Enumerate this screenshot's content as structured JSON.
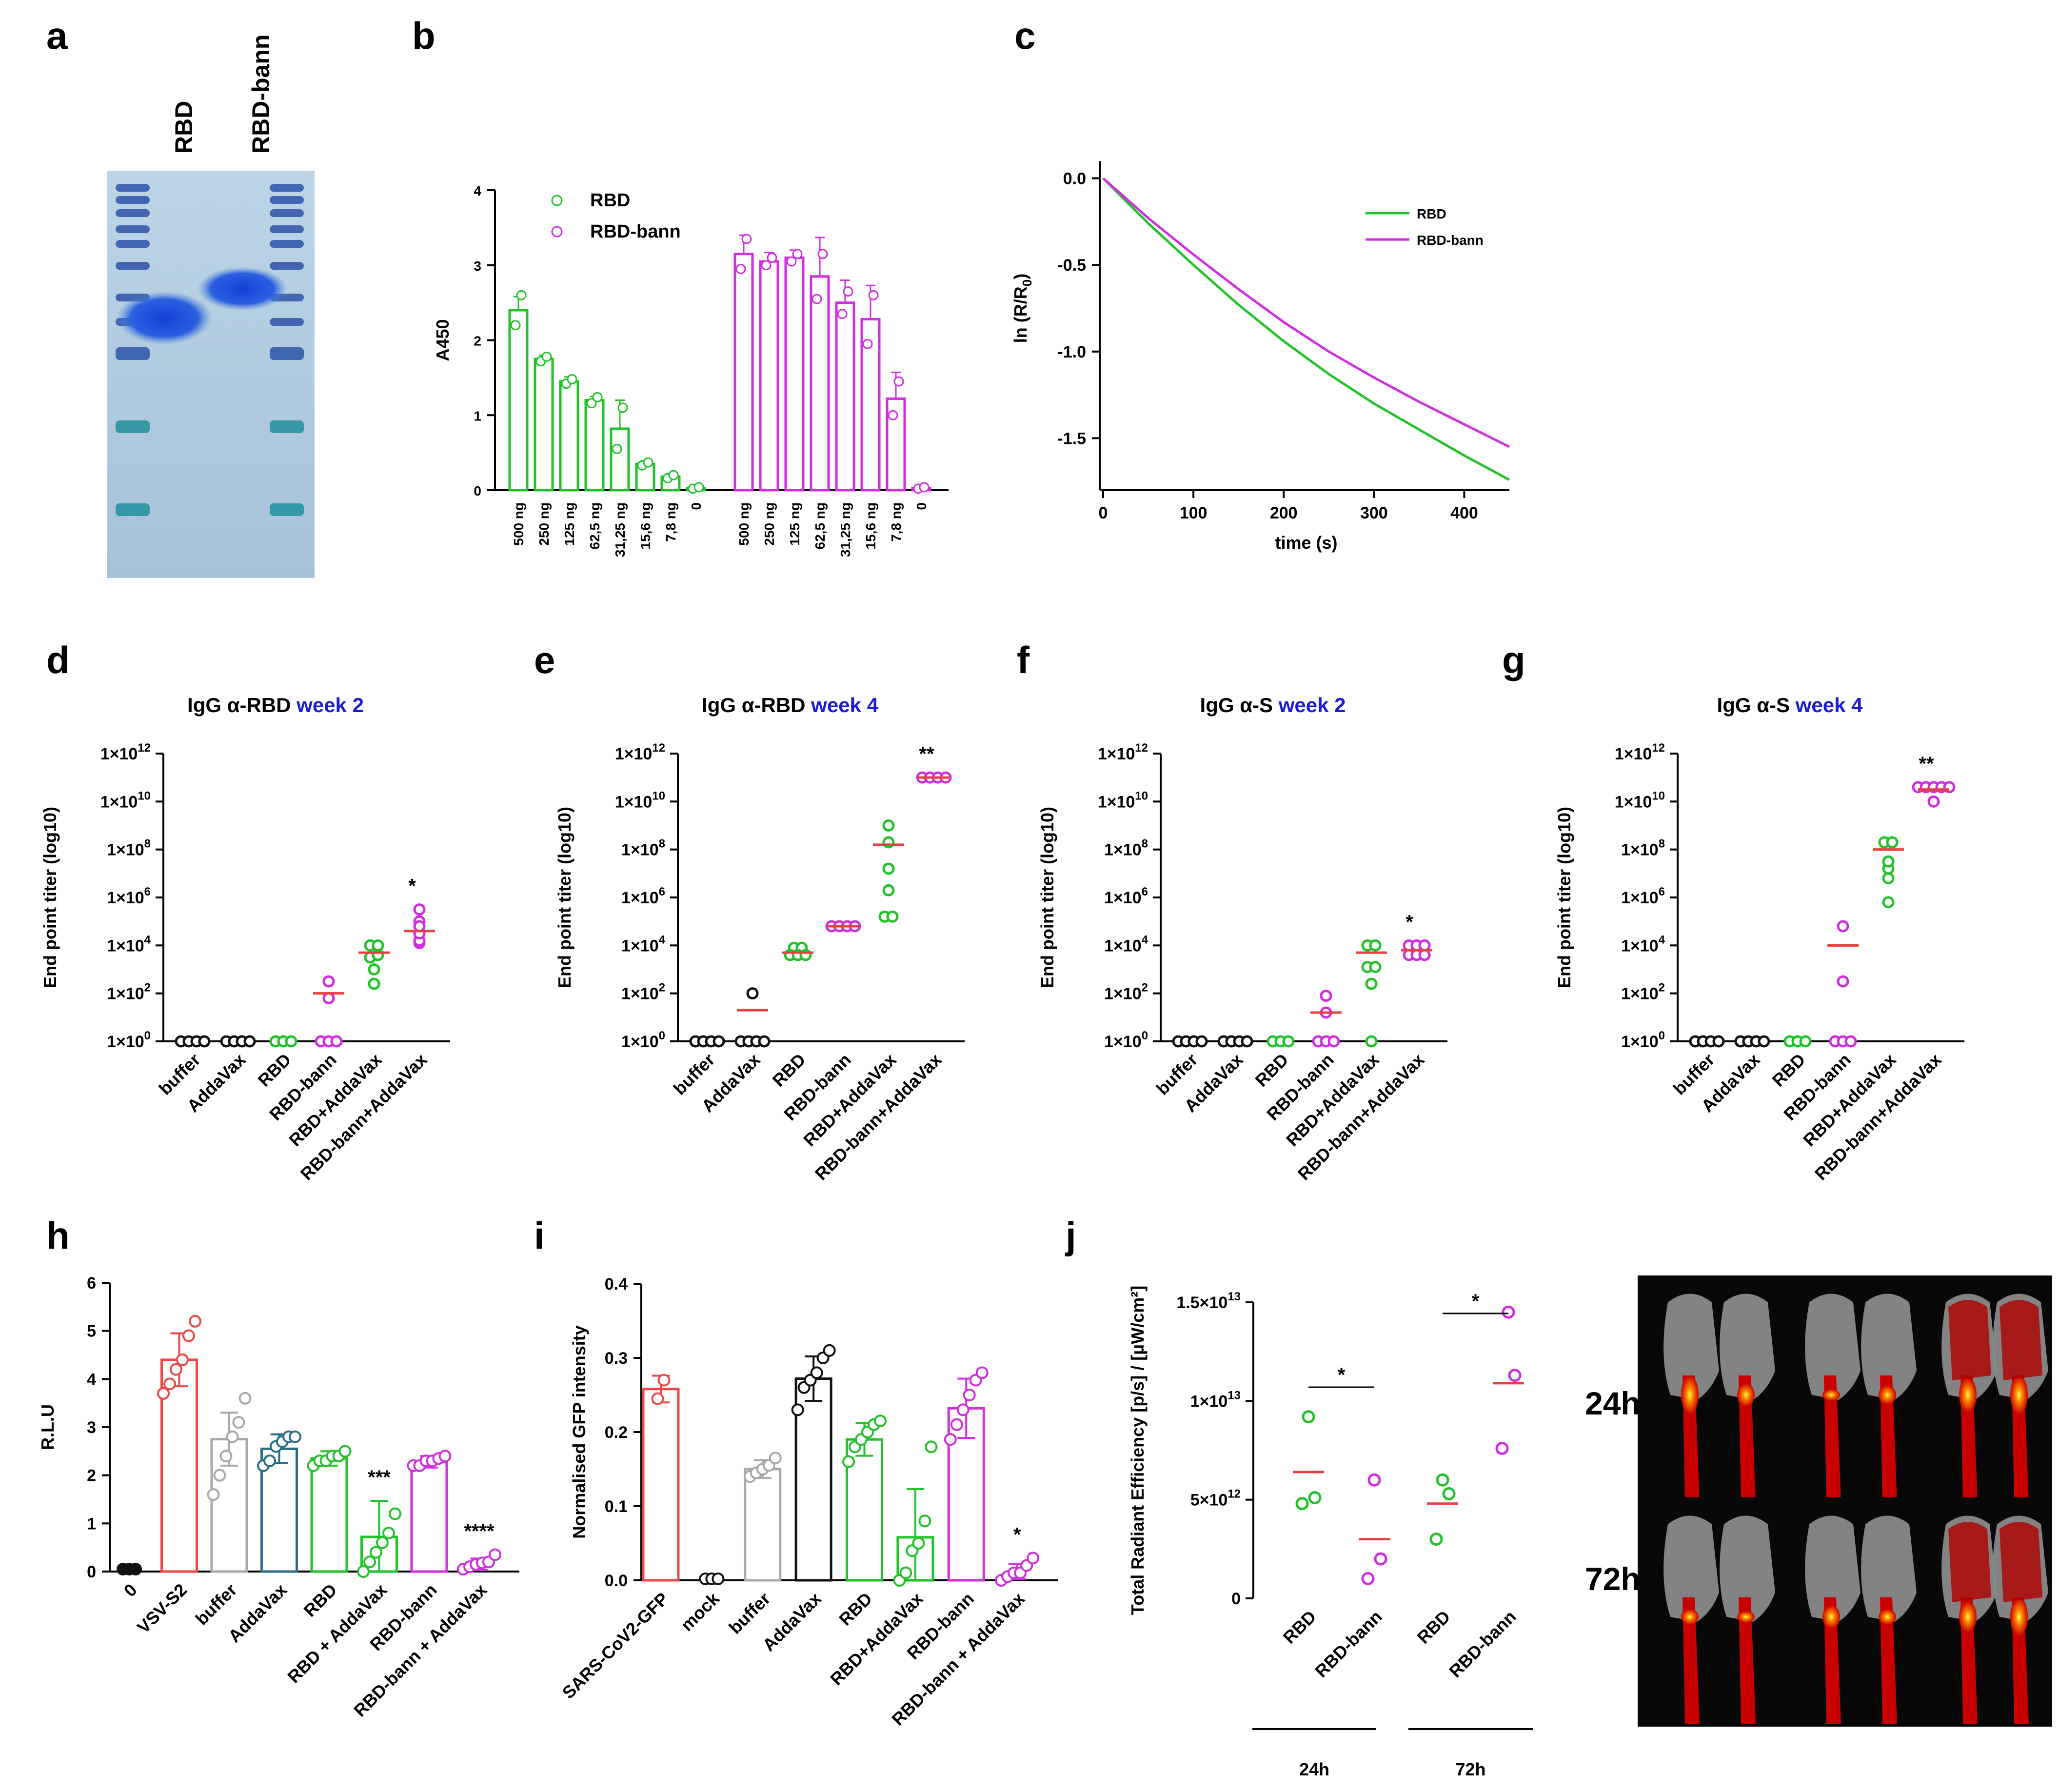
{
  "panel_letters": {
    "a": "a",
    "b": "b",
    "c": "c",
    "d": "d",
    "e": "e",
    "f": "f",
    "g": "g",
    "h": "h",
    "i": "i",
    "j": "j"
  },
  "colors": {
    "green": "#22c22a",
    "magenta": "#d02ee0",
    "red": "#ee4848",
    "grey": "#a8a8a8",
    "teal": "#2a6f86",
    "black": "#111111",
    "mean": "#e84040",
    "titleBlue": "#1a1ad8"
  },
  "chart_data": [
    {
      "id": "a",
      "type": "gel",
      "lane_labels": [
        "RBD",
        "RBD-bann"
      ]
    },
    {
      "id": "b",
      "type": "bar",
      "ylabel": "A450",
      "ylim": [
        0,
        4
      ],
      "yticks": [
        "0",
        "1",
        "2",
        "3",
        "4"
      ],
      "categories": [
        "500 ng",
        "250 ng",
        "125 ng",
        "62,5 ng",
        "31,25 ng",
        "15,6 ng",
        "7,8 ng",
        "0"
      ],
      "series": [
        {
          "name": "RBD",
          "color": "#22c22a",
          "values": [
            2.4,
            1.75,
            1.45,
            1.2,
            0.82,
            0.35,
            0.18,
            0.03
          ],
          "err": [
            0.18,
            0.05,
            0.06,
            0.05,
            0.38,
            0.04,
            0.04,
            0.02
          ],
          "points": [
            [
              2.2,
              2.6
            ],
            [
              1.72,
              1.78
            ],
            [
              1.42,
              1.48
            ],
            [
              1.16,
              1.24
            ],
            [
              0.55,
              1.1
            ],
            [
              0.33,
              0.37
            ],
            [
              0.16,
              0.2
            ],
            [
              0.02,
              0.04
            ]
          ]
        },
        {
          "name": "RBD-bann",
          "color": "#d02ee0",
          "values": [
            3.15,
            3.05,
            3.1,
            2.85,
            2.5,
            2.28,
            1.22,
            0.03
          ],
          "err": [
            0.25,
            0.12,
            0.1,
            0.52,
            0.3,
            0.45,
            0.35,
            0.02
          ],
          "points": [
            [
              2.95,
              3.35
            ],
            [
              3.0,
              3.1
            ],
            [
              3.05,
              3.15
            ],
            [
              2.55,
              3.15
            ],
            [
              2.35,
              2.65
            ],
            [
              1.95,
              2.6
            ],
            [
              1.0,
              1.45
            ],
            [
              0.02,
              0.04
            ]
          ]
        }
      ],
      "legend": [
        "RBD",
        "RBD-bann"
      ]
    },
    {
      "id": "c",
      "type": "line",
      "xlabel": "time (s)",
      "ylabel": "ln (R/R",
      "ylabel_sub": "0",
      "ylabel_end": ")",
      "xlim": [
        0,
        450
      ],
      "ylim": [
        -1.8,
        0.1
      ],
      "xticks": [
        "0",
        "100",
        "200",
        "300",
        "400"
      ],
      "yticks": [
        "0.0",
        "-0.5",
        "-1.0",
        "-1.5"
      ],
      "series": [
        {
          "name": "RBD",
          "color": "#22c22a",
          "x": [
            0,
            50,
            100,
            150,
            200,
            250,
            300,
            350,
            400,
            450
          ],
          "y": [
            0,
            -0.26,
            -0.5,
            -0.73,
            -0.94,
            -1.13,
            -1.3,
            -1.45,
            -1.6,
            -1.74
          ]
        },
        {
          "name": "RBD-bann",
          "color": "#d02ee0",
          "x": [
            0,
            50,
            100,
            150,
            200,
            250,
            300,
            350,
            400,
            450
          ],
          "y": [
            0,
            -0.23,
            -0.44,
            -0.64,
            -0.83,
            -1.0,
            -1.15,
            -1.29,
            -1.42,
            -1.55
          ]
        }
      ]
    },
    {
      "id": "d",
      "type": "scatter",
      "title": "IgG α-RBD",
      "title_suffix": "week 2",
      "ylabel": "End point titer (log10)",
      "ylim_log10": [
        0,
        12
      ],
      "yticks": [
        {
          "b": "1×10",
          "e": "12"
        },
        {
          "b": "1×10",
          "e": "10"
        },
        {
          "b": "1×10",
          "e": "8"
        },
        {
          "b": "1×10",
          "e": "6"
        },
        {
          "b": "1×10",
          "e": "4"
        },
        {
          "b": "1×10",
          "e": "2"
        },
        {
          "b": "1×10",
          "e": "0"
        }
      ],
      "categories": [
        "buffer",
        "AddaVax",
        "RBD",
        "RBD-bann",
        "RBD+AddaVax",
        "RBD-bann+AddaVax"
      ],
      "colors": [
        "#111111",
        "#111111",
        "#22c22a",
        "#d02ee0",
        "#22c22a",
        "#d02ee0"
      ],
      "points_log10": [
        [
          0,
          0,
          0,
          0
        ],
        [
          0,
          0,
          0,
          0
        ],
        [
          0,
          0,
          0
        ],
        [
          0,
          0,
          0,
          1.8,
          2.5
        ],
        [
          2.4,
          3.0,
          3.5,
          3.6,
          4.0,
          4.0
        ],
        [
          4.1,
          4.2,
          4.5,
          4.8,
          5.0,
          5.5
        ]
      ],
      "means_log10": [
        null,
        null,
        null,
        2.0,
        3.7,
        4.6
      ],
      "annotations": [
        {
          "category": 5,
          "text": "*"
        }
      ]
    },
    {
      "id": "e",
      "type": "scatter",
      "title": "IgG α-RBD",
      "title_suffix": "week 4",
      "ylabel": "End point titer (log10)",
      "ylim_log10": [
        0,
        12
      ],
      "yticks": [
        {
          "b": "1×10",
          "e": "12"
        },
        {
          "b": "1×10",
          "e": "10"
        },
        {
          "b": "1×10",
          "e": "8"
        },
        {
          "b": "1×10",
          "e": "6"
        },
        {
          "b": "1×10",
          "e": "4"
        },
        {
          "b": "1×10",
          "e": "2"
        },
        {
          "b": "1×10",
          "e": "0"
        }
      ],
      "categories": [
        "buffer",
        "AddaVax",
        "RBD",
        "RBD-bann",
        "RBD+AddaVax",
        "RBD-bann+AddaVax"
      ],
      "colors": [
        "#111111",
        "#111111",
        "#22c22a",
        "#d02ee0",
        "#22c22a",
        "#d02ee0"
      ],
      "points_log10": [
        [
          0,
          0,
          0,
          0
        ],
        [
          0,
          0,
          0,
          0,
          2.0
        ],
        [
          3.6,
          3.6,
          3.6,
          3.9,
          3.9
        ],
        [
          4.8,
          4.8,
          4.8,
          4.8
        ],
        [
          5.2,
          5.2,
          6.3,
          7.2,
          8.3,
          9.0
        ],
        [
          11,
          11,
          11,
          11
        ]
      ],
      "means_log10": [
        null,
        1.3,
        3.7,
        4.8,
        8.2,
        11
      ],
      "annotations": [
        {
          "category": 5,
          "text": "**"
        }
      ]
    },
    {
      "id": "f",
      "type": "scatter",
      "title": "IgG α-S",
      "title_suffix": "week 2",
      "ylabel": "End point titer (log10)",
      "ylim_log10": [
        0,
        12
      ],
      "yticks": [
        {
          "b": "1×10",
          "e": "12"
        },
        {
          "b": "1×10",
          "e": "10"
        },
        {
          "b": "1×10",
          "e": "8"
        },
        {
          "b": "1×10",
          "e": "6"
        },
        {
          "b": "1×10",
          "e": "4"
        },
        {
          "b": "1×10",
          "e": "2"
        },
        {
          "b": "1×10",
          "e": "0"
        }
      ],
      "categories": [
        "buffer",
        "AddaVax",
        "RBD",
        "RBD-bann",
        "RBD+AddaVax",
        "RBD-bann+AddaVax"
      ],
      "colors": [
        "#111111",
        "#111111",
        "#22c22a",
        "#d02ee0",
        "#22c22a",
        "#d02ee0"
      ],
      "points_log10": [
        [
          0,
          0,
          0,
          0
        ],
        [
          0,
          0,
          0,
          0
        ],
        [
          0,
          0,
          0
        ],
        [
          0,
          0,
          0,
          1.2,
          1.9
        ],
        [
          0,
          2.4,
          3.1,
          3.1,
          4.0,
          4.0
        ],
        [
          3.6,
          3.6,
          3.6,
          4.0,
          4.0,
          4.0
        ]
      ],
      "means_log10": [
        null,
        null,
        null,
        1.2,
        3.7,
        3.8
      ],
      "annotations": [
        {
          "category": 5,
          "text": "*"
        }
      ]
    },
    {
      "id": "g",
      "type": "scatter",
      "title": "IgG α-S",
      "title_suffix": "week 4",
      "ylabel": "End point titer (log10)",
      "ylim_log10": [
        0,
        12
      ],
      "yticks": [
        {
          "b": "1×10",
          "e": "12"
        },
        {
          "b": "1×10",
          "e": "10"
        },
        {
          "b": "1×10",
          "e": "8"
        },
        {
          "b": "1×10",
          "e": "6"
        },
        {
          "b": "1×10",
          "e": "4"
        },
        {
          "b": "1×10",
          "e": "2"
        },
        {
          "b": "1×10",
          "e": "0"
        }
      ],
      "categories": [
        "buffer",
        "AddaVax",
        "RBD",
        "RBD-bann",
        "RBD+AddaVax",
        "RBD-bann+AddaVax"
      ],
      "colors": [
        "#111111",
        "#111111",
        "#22c22a",
        "#d02ee0",
        "#22c22a",
        "#d02ee0"
      ],
      "points_log10": [
        [
          0,
          0,
          0,
          0
        ],
        [
          0,
          0,
          0,
          0
        ],
        [
          0,
          0,
          0
        ],
        [
          0,
          0,
          0,
          2.5,
          4.8
        ],
        [
          5.8,
          6.8,
          7.2,
          7.5,
          8.3,
          8.3
        ],
        [
          10,
          10.6,
          10.6,
          10.6,
          10.6,
          10.6
        ]
      ],
      "means_log10": [
        null,
        null,
        null,
        4.0,
        8.0,
        10.5
      ],
      "annotations": [
        {
          "category": 5,
          "text": "**"
        }
      ]
    },
    {
      "id": "h",
      "type": "bar",
      "ylabel": "R.L.U",
      "ylim": [
        0,
        6
      ],
      "yticks": [
        "0",
        "1",
        "2",
        "3",
        "4",
        "5",
        "6"
      ],
      "categories": [
        "0",
        "VSV-S2",
        "buffer",
        "AddaVax",
        "RBD",
        "RBD + AddaVax",
        "RBD-bann",
        "RBD-bann + AddaVax"
      ],
      "colors": [
        "#111111",
        "#ee4848",
        "#a8a8a8",
        "#2a6f86",
        "#22c22a",
        "#22c22a",
        "#d02ee0",
        "#d02ee0"
      ],
      "values": [
        0.05,
        4.4,
        2.75,
        2.55,
        2.35,
        0.72,
        2.28,
        0.15
      ],
      "err": [
        0,
        0.55,
        0.55,
        0.3,
        0.15,
        0.75,
        0.12,
        0.12
      ],
      "points": [
        [
          0.05,
          0.05,
          0.05
        ],
        [
          3.7,
          3.9,
          4.2,
          4.4,
          4.9,
          5.2
        ],
        [
          1.6,
          2.0,
          2.4,
          2.8,
          3.1,
          3.6
        ],
        [
          2.2,
          2.3,
          2.6,
          2.7,
          2.8,
          2.8
        ],
        [
          2.2,
          2.3,
          2.3,
          2.4,
          2.4,
          2.5
        ],
        [
          0.0,
          0.2,
          0.4,
          0.6,
          0.8,
          1.2
        ],
        [
          2.2,
          2.2,
          2.3,
          2.3,
          2.35,
          2.4
        ],
        [
          0.05,
          0.1,
          0.15,
          0.18,
          0.2,
          0.35
        ]
      ],
      "annotations": [
        {
          "category": 5,
          "text": "***"
        },
        {
          "category": 7,
          "text": "****"
        }
      ]
    },
    {
      "id": "i",
      "type": "bar",
      "ylabel": "Normalised GFP intensity",
      "ylim": [
        0,
        0.4
      ],
      "yticks": [
        "0.0",
        "0.1",
        "0.2",
        "0.3",
        "0.4"
      ],
      "categories": [
        "SARS-CoV2-GFP",
        "mock",
        "buffer",
        "AddaVax",
        "RBD",
        "RBD+AddaVax",
        "RBD-bann",
        "RBD-bann + AddaVax"
      ],
      "colors": [
        "#ee4848",
        "#111111",
        "#a8a8a8",
        "#111111",
        "#22c22a",
        "#22c22a",
        "#d02ee0",
        "#d02ee0"
      ],
      "values": [
        0.258,
        0.002,
        0.15,
        0.272,
        0.19,
        0.058,
        0.232,
        0.012
      ],
      "err": [
        0.018,
        0,
        0.012,
        0.03,
        0.022,
        0.065,
        0.04,
        0.01
      ],
      "points": [
        [
          0.245,
          0.27
        ],
        [
          0.002,
          0.002,
          0.002
        ],
        [
          0.14,
          0.145,
          0.15,
          0.155,
          0.165
        ],
        [
          0.23,
          0.26,
          0.27,
          0.28,
          0.3,
          0.31
        ],
        [
          0.16,
          0.18,
          0.19,
          0.2,
          0.21,
          0.215
        ],
        [
          0.0,
          0.01,
          0.04,
          0.05,
          0.08,
          0.18
        ],
        [
          0.19,
          0.21,
          0.23,
          0.25,
          0.27,
          0.28
        ],
        [
          0.0,
          0.005,
          0.01,
          0.01,
          0.02,
          0.03
        ]
      ],
      "annotations": [
        {
          "category": 7,
          "text": "*"
        }
      ]
    },
    {
      "id": "j",
      "type": "scatter",
      "ylabel": "Total Radiant Efficiency [p/s] / [μW/cm²]",
      "ylim": [
        0,
        15000000000000.0
      ],
      "yticks": [
        {
          "v": 0,
          "b": "0",
          "e": ""
        },
        {
          "v": 5000000000000.0,
          "b": "5×10",
          "e": "12"
        },
        {
          "v": 10000000000000.0,
          "b": "1×10",
          "e": "13"
        },
        {
          "v": 15000000000000.0,
          "b": "1.5×10",
          "e": "13"
        }
      ],
      "categories": [
        "RBD",
        "RBD-bann",
        "RBD",
        "RBD-bann"
      ],
      "colors": [
        "#22c22a",
        "#d02ee0",
        "#22c22a",
        "#d02ee0"
      ],
      "points": [
        [
          4800000000000.0,
          5100000000000.0,
          9200000000000.0
        ],
        [
          1000000000000.0,
          2000000000000.0,
          6000000000000.0
        ],
        [
          3000000000000.0,
          5300000000000.0,
          6000000000000.0
        ],
        [
          7600000000000.0,
          11300000000000.0,
          14500000000000.0
        ]
      ],
      "means": [
        6400000000000.0,
        3000000000000.0,
        4800000000000.0,
        10900000000000.0
      ],
      "groups": [
        "24h",
        "72h"
      ],
      "annotations": [
        {
          "from": 0,
          "to": 1,
          "text": "*"
        },
        {
          "from": 2,
          "to": 3,
          "text": "*"
        }
      ],
      "image_labels": [
        "24h",
        "72h"
      ]
    }
  ]
}
